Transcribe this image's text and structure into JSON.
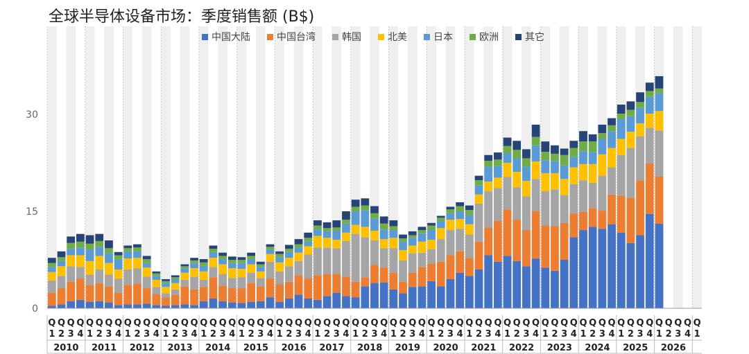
{
  "chart_data": {
    "type": "bar",
    "stacked": true,
    "title": "全球半导体设备市场：季度销售额 (B$)",
    "xlabel": "",
    "ylabel": "",
    "ylim": [
      0,
      37
    ],
    "yticks": [
      0,
      15,
      30
    ],
    "grid": false,
    "legend_position": "top-center",
    "years": [
      "2010",
      "2011",
      "2012",
      "2013",
      "2014",
      "2015",
      "2016",
      "2017",
      "2018",
      "2019",
      "2020",
      "2021",
      "2022",
      "2023",
      "2024",
      "2025",
      "2026"
    ],
    "quarter_labels": [
      [
        "Q",
        "1"
      ],
      [
        "Q",
        "2"
      ],
      [
        "Q",
        "3"
      ],
      [
        "Q",
        "4"
      ]
    ],
    "colors": {
      "中国大陆": "#4472C4",
      "中国台湾": "#ED7D31",
      "韩国": "#A5A5A5",
      "北美": "#FFC000",
      "日本": "#5B9BD5",
      "欧洲": "#70AD47",
      "其它": "#264478",
      "band": "#EFEFEF"
    },
    "series": [
      {
        "name": "中国大陆",
        "values": [
          0.4,
          0.6,
          1.1,
          1.3,
          1.0,
          1.1,
          0.9,
          0.5,
          0.6,
          0.6,
          0.7,
          0.5,
          0.4,
          0.5,
          0.6,
          0.5,
          1.1,
          1.5,
          1.1,
          0.9,
          0.8,
          1.0,
          1.1,
          1.7,
          1.0,
          1.5,
          2.1,
          1.5,
          1.3,
          1.9,
          2.4,
          1.9,
          1.7,
          3.4,
          3.9,
          4.0,
          2.9,
          2.3,
          3.3,
          3.4,
          4.2,
          3.4,
          4.5,
          5.5,
          5.0,
          6.0,
          8.2,
          7.2,
          8.1,
          7.3,
          6.5,
          7.7,
          6.3,
          5.8,
          7.5,
          11.0,
          12.1,
          12.6,
          12.3,
          13.0,
          11.7,
          10.1,
          11.3,
          14.6,
          13.1,
          0,
          0,
          0,
          0
        ]
      },
      {
        "name": "中国台湾",
        "values": [
          2.0,
          2.5,
          3.0,
          3.3,
          2.6,
          2.8,
          2.5,
          1.9,
          3.0,
          3.2,
          2.4,
          1.7,
          1.3,
          1.6,
          2.8,
          2.4,
          2.2,
          3.3,
          2.4,
          2.2,
          2.3,
          2.9,
          2.3,
          2.9,
          2.7,
          2.6,
          3.0,
          3.1,
          3.8,
          3.4,
          2.9,
          3.0,
          2.4,
          1.4,
          2.8,
          2.3,
          2.6,
          1.8,
          2.2,
          3.0,
          2.7,
          3.8,
          3.7,
          3.3,
          2.8,
          4.3,
          4.3,
          6.3,
          7.2,
          6.4,
          5.6,
          7.3,
          6.5,
          6.9,
          5.7,
          3.7,
          2.8,
          2.9,
          2.8,
          4.6,
          5.7,
          7.0,
          8.5,
          7.8,
          7.3,
          0,
          0,
          0,
          0
        ]
      },
      {
        "name": "韩国",
        "values": [
          1.9,
          1.9,
          2.4,
          1.8,
          1.6,
          2.1,
          1.8,
          2.2,
          2.4,
          2.4,
          1.8,
          1.1,
          0.6,
          0.8,
          1.0,
          2.0,
          1.1,
          1.6,
          1.8,
          1.6,
          1.7,
          1.6,
          1.3,
          2.6,
          2.0,
          2.4,
          2.2,
          3.7,
          4.3,
          4.1,
          4.0,
          5.5,
          7.4,
          6.2,
          3.8,
          3.0,
          3.8,
          3.3,
          3.0,
          2.2,
          2.2,
          3.5,
          3.9,
          3.5,
          3.6,
          5.9,
          5.6,
          5.1,
          5.0,
          5.0,
          5.2,
          5.0,
          5.3,
          5.7,
          4.3,
          4.5,
          4.9,
          3.9,
          5.4,
          4.2,
          6.3,
          7.7,
          6.8,
          5.5,
          7.1,
          0,
          0,
          0,
          0
        ]
      },
      {
        "name": "北美",
        "values": [
          1.3,
          1.5,
          1.7,
          1.8,
          2.1,
          2.1,
          1.8,
          1.4,
          1.7,
          1.6,
          1.4,
          1.1,
          1.0,
          1.0,
          1.1,
          1.3,
          1.3,
          1.4,
          1.5,
          1.5,
          1.3,
          1.3,
          1.0,
          1.2,
          1.4,
          1.3,
          1.3,
          1.3,
          1.8,
          1.5,
          1.3,
          1.3,
          1.4,
          1.6,
          1.5,
          1.4,
          1.6,
          1.6,
          1.2,
          1.7,
          1.5,
          1.7,
          1.6,
          1.5,
          1.6,
          1.4,
          1.5,
          1.6,
          2.2,
          2.4,
          2.4,
          2.7,
          2.8,
          2.5,
          2.5,
          2.6,
          2.5,
          2.9,
          3.3,
          3.0,
          2.5,
          2.5,
          2.0,
          2.2,
          3.0,
          0,
          0,
          0,
          0
        ]
      },
      {
        "name": "日本",
        "values": [
          0.8,
          0.8,
          1.0,
          1.2,
          1.8,
          1.4,
          1.5,
          1.6,
          1.1,
          1.0,
          0.7,
          0.6,
          0.6,
          0.6,
          0.7,
          0.8,
          0.9,
          0.9,
          0.8,
          0.8,
          0.9,
          0.8,
          0.7,
          0.7,
          0.8,
          0.9,
          0.8,
          0.7,
          1.0,
          1.0,
          1.4,
          1.4,
          2.1,
          2.6,
          1.9,
          1.5,
          1.2,
          1.3,
          1.2,
          1.3,
          1.5,
          1.1,
          1.0,
          1.2,
          1.4,
          1.4,
          2.3,
          1.8,
          1.5,
          2.1,
          2.2,
          2.5,
          2.0,
          1.9,
          2.1,
          1.6,
          2.0,
          1.9,
          2.4,
          2.6,
          3.1,
          2.4,
          2.4,
          2.6,
          2.8,
          0,
          0,
          0,
          0
        ]
      },
      {
        "name": "欧洲",
        "values": [
          0.6,
          0.6,
          0.9,
          0.9,
          0.9,
          0.9,
          0.8,
          0.6,
          0.5,
          0.6,
          0.6,
          0.4,
          0.3,
          0.3,
          0.3,
          0.4,
          0.5,
          0.5,
          0.5,
          0.5,
          0.5,
          0.5,
          0.4,
          0.4,
          0.5,
          0.5,
          0.5,
          0.6,
          0.6,
          0.5,
          0.5,
          0.6,
          0.7,
          0.7,
          0.8,
          0.9,
          0.6,
          0.5,
          0.4,
          0.5,
          0.7,
          0.5,
          0.6,
          0.8,
          0.8,
          0.8,
          0.9,
          1.0,
          1.1,
          1.3,
          1.3,
          1.3,
          1.3,
          1.1,
          1.6,
          1.4,
          1.5,
          1.6,
          0.9,
          0.9,
          0.8,
          1.0,
          0.9,
          0.9,
          0.7,
          0.0,
          0,
          0,
          0
        ]
      },
      {
        "name": "其它",
        "values": [
          0.8,
          0.9,
          1.0,
          1.2,
          1.3,
          1.1,
          1.2,
          0.5,
          0.4,
          0.5,
          0.5,
          0.3,
          0.3,
          0.3,
          0.3,
          0.4,
          0.5,
          0.5,
          0.5,
          0.5,
          0.4,
          0.5,
          0.4,
          0.4,
          0.4,
          0.6,
          0.8,
          0.8,
          0.8,
          0.9,
          1.1,
          1.3,
          1.1,
          1.1,
          1.1,
          1.1,
          0.9,
          0.6,
          0.6,
          0.5,
          0.4,
          0.3,
          0.4,
          0.6,
          0.7,
          0.7,
          0.9,
          1.1,
          1.3,
          1.4,
          1.4,
          1.9,
          1.6,
          1.3,
          1.0,
          1.1,
          1.6,
          1.1,
          1.3,
          1.1,
          1.4,
          1.3,
          1.5,
          1.3,
          1.9,
          0,
          0,
          0,
          0
        ]
      }
    ]
  }
}
